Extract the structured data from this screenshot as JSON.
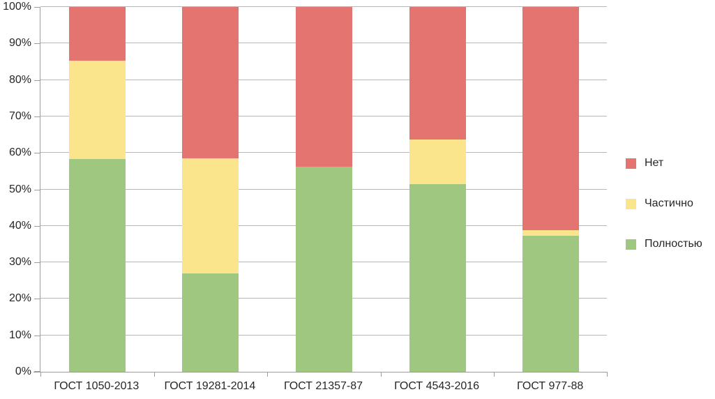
{
  "chart_data": {
    "type": "bar",
    "stacked": true,
    "units": "percent",
    "title": "",
    "xlabel": "",
    "ylabel": "",
    "ylim": [
      0,
      100
    ],
    "grid": true,
    "legend_position": "right",
    "categories": [
      "ГОСТ 1050-2013",
      "ГОСТ 19281-2014",
      "ГОСТ 21357-87",
      "ГОСТ 4543-2016",
      "ГОСТ 977-88"
    ],
    "series": [
      {
        "name": "Полностью",
        "color": "#a0c77f",
        "values": [
          58.3,
          27.0,
          56.2,
          51.4,
          37.2
        ]
      },
      {
        "name": "Частично",
        "color": "#fae58c",
        "values": [
          27.0,
          31.6,
          0.0,
          12.2,
          1.7
        ]
      },
      {
        "name": "Нет",
        "color": "#e4746f",
        "values": [
          14.7,
          41.4,
          43.8,
          36.4,
          61.1
        ]
      }
    ],
    "legend": [
      {
        "label": "Нет",
        "color": "#e4746f"
      },
      {
        "label": "Частично",
        "color": "#fae58c"
      },
      {
        "label": "Полностью",
        "color": "#a0c77f"
      }
    ],
    "y_tick_labels": [
      "0%",
      "10%",
      "20%",
      "30%",
      "40%",
      "50%",
      "60%",
      "70%",
      "80%",
      "90%",
      "100%"
    ]
  },
  "style": {
    "grid_color": "#b7b7b7",
    "axis_color": "#9b9b9b",
    "text_color": "#262626",
    "background": "#ffffff"
  }
}
